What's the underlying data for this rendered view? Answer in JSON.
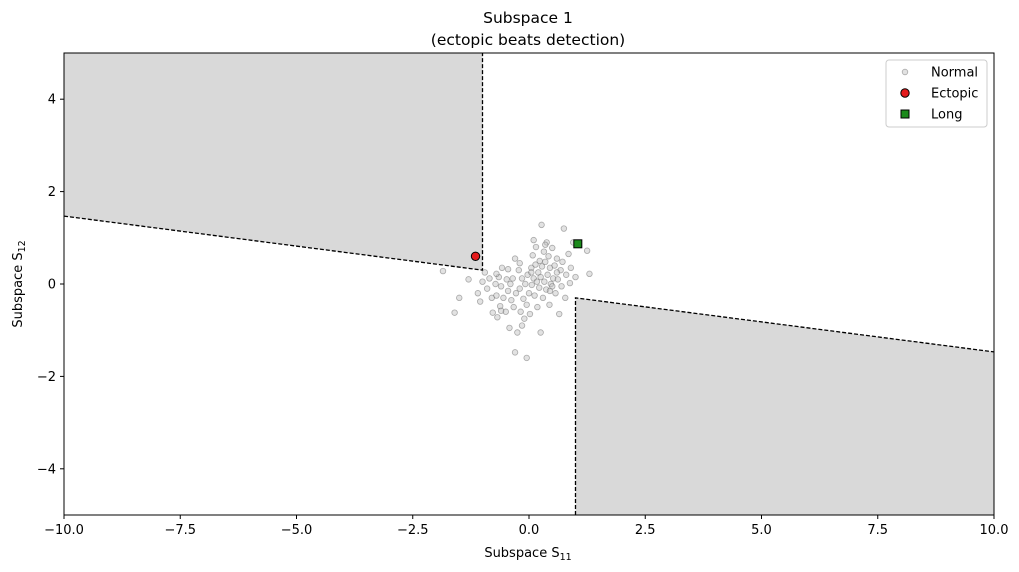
{
  "chart_data": {
    "type": "scatter",
    "title": "Subspace 1",
    "subtitle": "(ectopic beats detection)",
    "xlabel_base": "Subspace S",
    "xlabel_sub": "11",
    "ylabel_base": "Subspace S",
    "ylabel_sub": "12",
    "xlim": [
      -10,
      10
    ],
    "ylim": [
      -5,
      5
    ],
    "xticks": [
      -10,
      -7.5,
      -5,
      -2.5,
      0,
      2.5,
      5,
      7.5,
      10
    ],
    "xtick_labels": [
      "−10.0",
      "−7.5",
      "−5.0",
      "−2.5",
      "0.0",
      "2.5",
      "5.0",
      "7.5",
      "10.0"
    ],
    "yticks": [
      -4,
      -2,
      0,
      2,
      4
    ],
    "ytick_labels": [
      "−4",
      "−2",
      "0",
      "2",
      "4"
    ],
    "grid": false,
    "legend_placement": "top-right",
    "shaded_regions": [
      {
        "name": "ectopic-region-upper-left",
        "polygon": [
          [
            -10,
            5
          ],
          [
            -1,
            5
          ],
          [
            -1,
            0.3
          ],
          [
            -10,
            1.47
          ]
        ],
        "color": "#d9d9d9"
      },
      {
        "name": "ectopic-region-lower-right",
        "polygon": [
          [
            1,
            -0.3
          ],
          [
            10,
            -1.47
          ],
          [
            10,
            -5
          ],
          [
            1,
            -5
          ]
        ],
        "color": "#d9d9d9"
      }
    ],
    "boundaries": [
      {
        "name": "boundary-upper-left",
        "points": [
          [
            -10,
            1.47
          ],
          [
            -1,
            0.3
          ],
          [
            -1,
            5
          ]
        ],
        "style": "dashed",
        "color": "#000000"
      },
      {
        "name": "boundary-lower-right",
        "points": [
          [
            1,
            -5
          ],
          [
            1,
            -0.3
          ],
          [
            10,
            -1.47
          ]
        ],
        "style": "dashed",
        "color": "#000000"
      }
    ],
    "series": [
      {
        "name": "Normal",
        "marker": "circle",
        "color": "#bfbfbf",
        "edgecolor": "#555555",
        "opacity": 0.45,
        "points": [
          [
            -1.85,
            0.28
          ],
          [
            -1.6,
            -0.62
          ],
          [
            -1.5,
            -0.3
          ],
          [
            -1.3,
            0.1
          ],
          [
            -1.1,
            -0.2
          ],
          [
            -1.05,
            -0.38
          ],
          [
            -1.0,
            0.05
          ],
          [
            -0.95,
            0.25
          ],
          [
            -0.9,
            -0.1
          ],
          [
            -0.85,
            0.12
          ],
          [
            -0.8,
            -0.3
          ],
          [
            -0.78,
            -0.62
          ],
          [
            -0.72,
            0.0
          ],
          [
            -0.7,
            -0.25
          ],
          [
            -0.68,
            -0.72
          ],
          [
            -0.65,
            0.15
          ],
          [
            -0.62,
            -0.48
          ],
          [
            -0.6,
            -0.05
          ],
          [
            -0.58,
            0.35
          ],
          [
            -0.55,
            -0.3
          ],
          [
            -0.5,
            -0.6
          ],
          [
            -0.48,
            0.1
          ],
          [
            -0.45,
            -0.15
          ],
          [
            -0.42,
            -0.95
          ],
          [
            -0.4,
            0.0
          ],
          [
            -0.38,
            -0.35
          ],
          [
            -0.35,
            0.12
          ],
          [
            -0.33,
            -0.5
          ],
          [
            -0.3,
            0.55
          ],
          [
            -0.28,
            -0.2
          ],
          [
            -0.25,
            -1.05
          ],
          [
            -0.22,
            0.3
          ],
          [
            -0.2,
            -0.1
          ],
          [
            -0.18,
            -0.6
          ],
          [
            -0.15,
            0.12
          ],
          [
            -0.12,
            -0.32
          ],
          [
            -0.1,
            -0.75
          ],
          [
            -0.08,
            0.0
          ],
          [
            -0.05,
            -0.45
          ],
          [
            -0.03,
            0.2
          ],
          [
            0.0,
            -0.2
          ],
          [
            0.02,
            -0.65
          ],
          [
            0.05,
            0.35
          ],
          [
            0.06,
            -0.02
          ],
          [
            0.08,
            0.62
          ],
          [
            0.1,
            0.12
          ],
          [
            0.12,
            -0.25
          ],
          [
            0.14,
            0.42
          ],
          [
            0.15,
            0.8
          ],
          [
            0.17,
            0.05
          ],
          [
            0.2,
            0.25
          ],
          [
            0.22,
            -0.08
          ],
          [
            0.23,
            0.5
          ],
          [
            0.25,
            0.15
          ],
          [
            0.27,
            1.28
          ],
          [
            0.28,
            0.38
          ],
          [
            0.3,
            -0.3
          ],
          [
            0.32,
            0.7
          ],
          [
            0.33,
            0.05
          ],
          [
            0.35,
            0.48
          ],
          [
            0.37,
            -0.12
          ],
          [
            0.38,
            0.9
          ],
          [
            0.4,
            0.2
          ],
          [
            0.42,
            0.6
          ],
          [
            0.44,
            -0.45
          ],
          [
            0.45,
            0.35
          ],
          [
            0.47,
            0.0
          ],
          [
            0.5,
            0.78
          ],
          [
            0.52,
            0.12
          ],
          [
            0.55,
            0.4
          ],
          [
            0.57,
            -0.2
          ],
          [
            0.6,
            0.55
          ],
          [
            0.62,
            0.1
          ],
          [
            0.65,
            -0.65
          ],
          [
            0.68,
            0.3
          ],
          [
            0.7,
            -0.05
          ],
          [
            0.72,
            0.48
          ],
          [
            0.75,
            1.2
          ],
          [
            0.78,
            -0.3
          ],
          [
            0.8,
            0.2
          ],
          [
            0.85,
            0.65
          ],
          [
            0.88,
            0.02
          ],
          [
            0.9,
            0.35
          ],
          [
            0.95,
            0.9
          ],
          [
            1.0,
            0.15
          ],
          [
            1.25,
            0.72
          ],
          [
            1.3,
            0.22
          ],
          [
            -0.05,
            -1.6
          ],
          [
            -0.6,
            -0.58
          ],
          [
            0.25,
            -1.05
          ],
          [
            -0.3,
            -1.48
          ],
          [
            -0.15,
            -0.9
          ],
          [
            0.45,
            -0.15
          ],
          [
            0.1,
            0.95
          ],
          [
            -0.45,
            0.32
          ],
          [
            0.6,
            0.25
          ],
          [
            0.35,
            0.85
          ],
          [
            -0.2,
            0.45
          ],
          [
            0.18,
            -0.5
          ],
          [
            0.5,
            -0.05
          ],
          [
            -0.7,
            0.22
          ],
          [
            0.05,
            0.25
          ]
        ]
      },
      {
        "name": "Ectopic",
        "marker": "circle",
        "color": "#e41a1c",
        "edgecolor": "#000000",
        "points": [
          [
            -1.15,
            0.6
          ]
        ]
      },
      {
        "name": "Long",
        "marker": "square",
        "color": "#1b8a1b",
        "edgecolor": "#000000",
        "points": [
          [
            1.05,
            0.87
          ]
        ]
      }
    ]
  }
}
